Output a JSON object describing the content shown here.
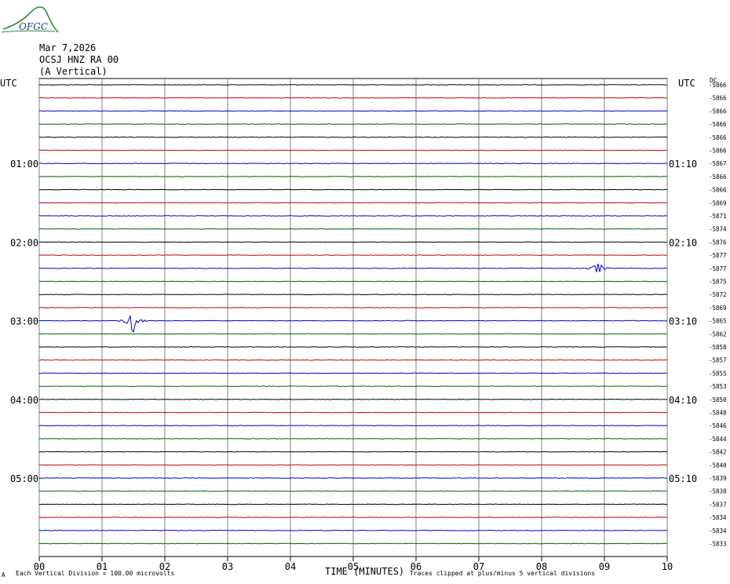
{
  "logo": {
    "text": "OFGC"
  },
  "header": {
    "date": "Mar 7,2026",
    "station": "OCSJ HNZ RA 00",
    "component": "(A Vertical)",
    "utc_left": "UTC",
    "utc_right": "UTC",
    "dc_label": "DC"
  },
  "footer": {
    "corner_mark": "A",
    "scale_note": "Each Vertical Division =  100.00 microvolts",
    "xlabel": "TIME (MINUTES)",
    "clip_note": "Traces clipped at plus/minus 5 vertical divisions"
  },
  "colors": {
    "black": "#000000",
    "red": "#cc0000",
    "blue": "#0000cc",
    "green": "#006600",
    "grid": "#808080"
  },
  "chart_data": {
    "type": "line",
    "xlabel": "TIME (MINUTES)",
    "x_range": [
      0,
      10
    ],
    "x_ticks": [
      "00",
      "01",
      "02",
      "03",
      "04",
      "05",
      "06",
      "07",
      "08",
      "09",
      "10"
    ],
    "trace_color_cycle": [
      "black",
      "red",
      "blue",
      "green"
    ],
    "left_hour_labels": [
      {
        "row": 6,
        "label": "01:00"
      },
      {
        "row": 12,
        "label": "02:00"
      },
      {
        "row": 18,
        "label": "03:00"
      },
      {
        "row": 24,
        "label": "04:00"
      },
      {
        "row": 30,
        "label": "05:00"
      }
    ],
    "right_hour_labels": [
      {
        "row": 6,
        "label": "01:10"
      },
      {
        "row": 12,
        "label": "02:10"
      },
      {
        "row": 18,
        "label": "03:10"
      },
      {
        "row": 24,
        "label": "04:10"
      },
      {
        "row": 30,
        "label": "05:10"
      }
    ],
    "dc_offsets": [
      "-5866",
      "-5866",
      "-5866",
      "-5866",
      "-5866",
      "-5866",
      "-5867",
      "-5866",
      "-5866",
      "-5869",
      "-5871",
      "-5874",
      "-5876",
      "-5877",
      "-5877",
      "-5875",
      "-5872",
      "-5869",
      "-5865",
      "-5862",
      "-5858",
      "-5857",
      "-5855",
      "-5853",
      "-5850",
      "-5848",
      "-5846",
      "-5844",
      "-5842",
      "-5840",
      "-5839",
      "-5838",
      "-5837",
      "-5834",
      "-5834",
      "-5833"
    ],
    "events": [
      {
        "row": 14,
        "minute": 8.9,
        "amplitude_divisions": 1.0
      },
      {
        "row": 18,
        "minute": 1.5,
        "amplitude_divisions": 2.6
      }
    ]
  }
}
